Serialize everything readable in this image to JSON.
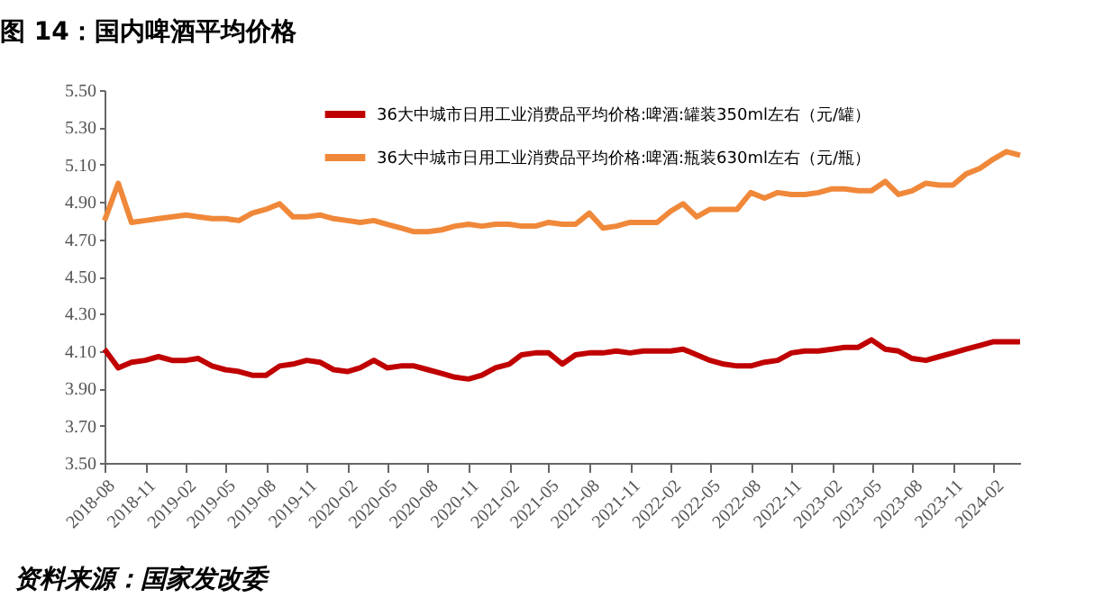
{
  "chart_data": {
    "type": "line",
    "title": "图 14：国内啤酒平均价格",
    "x": [
      "2018-08",
      "2018-09",
      "2018-10",
      "2018-11",
      "2018-12",
      "2019-01",
      "2019-02",
      "2019-03",
      "2019-04",
      "2019-05",
      "2019-06",
      "2019-07",
      "2019-08",
      "2019-09",
      "2019-10",
      "2019-11",
      "2019-12",
      "2020-01",
      "2020-02",
      "2020-03",
      "2020-04",
      "2020-05",
      "2020-06",
      "2020-07",
      "2020-08",
      "2020-09",
      "2020-10",
      "2020-11",
      "2020-12",
      "2021-01",
      "2021-02",
      "2021-03",
      "2021-04",
      "2021-05",
      "2021-06",
      "2021-07",
      "2021-08",
      "2021-09",
      "2021-10",
      "2021-11",
      "2021-12",
      "2022-01",
      "2022-02",
      "2022-03",
      "2022-04",
      "2022-05",
      "2022-06",
      "2022-07",
      "2022-08",
      "2022-09",
      "2022-10",
      "2022-11",
      "2022-12",
      "2023-01",
      "2023-02",
      "2023-03",
      "2023-04",
      "2023-05",
      "2023-06",
      "2023-07",
      "2023-08",
      "2023-09",
      "2023-10",
      "2023-11",
      "2023-12",
      "2024-01",
      "2024-02",
      "2024-03",
      "2024-04"
    ],
    "series": [
      {
        "name": "36大中城市日用工业消费品平均价格:啤酒:罐装350ml左右（元/罐）",
        "color": "#c00000",
        "values": [
          4.11,
          4.01,
          4.04,
          4.05,
          4.07,
          4.05,
          4.05,
          4.06,
          4.02,
          4.0,
          3.99,
          3.97,
          3.97,
          4.02,
          4.03,
          4.05,
          4.04,
          4.0,
          3.99,
          4.01,
          4.05,
          4.01,
          4.02,
          4.02,
          4.0,
          3.98,
          3.96,
          3.95,
          3.97,
          4.01,
          4.03,
          4.08,
          4.09,
          4.09,
          4.03,
          4.08,
          4.09,
          4.09,
          4.1,
          4.09,
          4.1,
          4.1,
          4.1,
          4.11,
          4.08,
          4.05,
          4.03,
          4.02,
          4.02,
          4.04,
          4.05,
          4.09,
          4.1,
          4.1,
          4.11,
          4.12,
          4.12,
          4.16,
          4.11,
          4.1,
          4.06,
          4.05,
          4.07,
          4.09,
          4.11,
          4.13,
          4.15,
          4.15,
          4.15
        ]
      },
      {
        "name": "36大中城市日用工业消费品平均价格:啤酒:瓶装630ml左右（元/瓶）",
        "color": "#f0883a",
        "values": [
          4.8,
          5.0,
          4.79,
          4.8,
          4.81,
          4.82,
          4.83,
          4.82,
          4.81,
          4.81,
          4.8,
          4.84,
          4.86,
          4.89,
          4.82,
          4.82,
          4.83,
          4.81,
          4.8,
          4.79,
          4.8,
          4.78,
          4.76,
          4.74,
          4.74,
          4.75,
          4.77,
          4.78,
          4.77,
          4.78,
          4.78,
          4.77,
          4.77,
          4.79,
          4.78,
          4.78,
          4.84,
          4.76,
          4.77,
          4.79,
          4.79,
          4.79,
          4.85,
          4.89,
          4.82,
          4.86,
          4.86,
          4.86,
          4.95,
          4.92,
          4.95,
          4.94,
          4.94,
          4.95,
          4.97,
          4.97,
          4.96,
          4.96,
          5.01,
          4.94,
          4.96,
          5.0,
          4.99,
          4.99,
          5.05,
          5.08,
          5.13,
          5.17,
          5.15
        ]
      }
    ],
    "xlim": [
      "2018-08",
      "2024-04"
    ],
    "xticks": [
      "2018-08",
      "2018-11",
      "2019-02",
      "2019-05",
      "2019-08",
      "2019-11",
      "2020-02",
      "2020-05",
      "2020-08",
      "2020-11",
      "2021-02",
      "2021-05",
      "2021-08",
      "2021-11",
      "2022-02",
      "2022-05",
      "2022-08",
      "2022-11",
      "2023-02",
      "2023-05",
      "2023-08",
      "2023-11",
      "2024-02"
    ],
    "ylim": [
      3.5,
      5.5
    ],
    "yticks": [
      {
        "value": 3.5,
        "label": "3.50"
      },
      {
        "value": 3.7,
        "label": "3.70"
      },
      {
        "value": 3.9,
        "label": "3.90"
      },
      {
        "value": 4.1,
        "label": "4.10"
      },
      {
        "value": 4.3,
        "label": "4.30"
      },
      {
        "value": 4.5,
        "label": "4.50"
      },
      {
        "value": 4.7,
        "label": "4.70"
      },
      {
        "value": 4.9,
        "label": "4.90"
      },
      {
        "value": 5.1,
        "label": "5.10"
      },
      {
        "value": 5.3,
        "label": "5.30"
      },
      {
        "value": 5.5,
        "label": "5.50"
      }
    ],
    "legend": "top",
    "grid": false,
    "annotations": [
      "资料来源：国家发改委"
    ]
  }
}
